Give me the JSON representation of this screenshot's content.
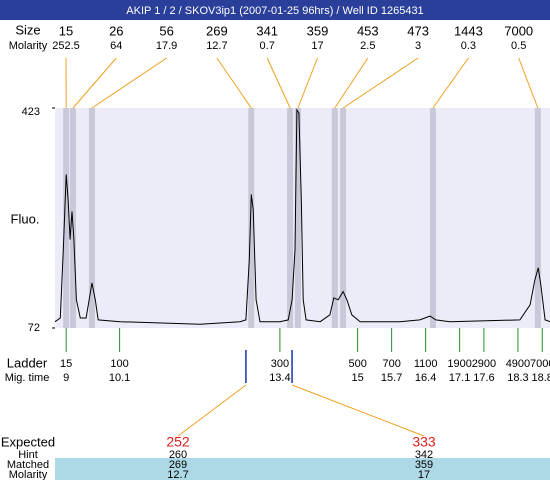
{
  "header": {
    "title": "AKIP 1 / 2 / SKOV3ip1 (2007-01-25 96hrs) / Well ID 1265431"
  },
  "peaks": {
    "size_label": "Size",
    "molarity_label": "Molarity",
    "sizes": [
      15,
      26,
      56,
      269,
      341,
      359,
      453,
      473,
      1443,
      7000
    ],
    "molarity": [
      252.5,
      64,
      17.9,
      12.7,
      0.7,
      17,
      2.5,
      3,
      0.3,
      0.5
    ],
    "times": [
      9.0,
      9.14,
      9.53,
      12.81,
      13.61,
      13.77,
      14.53,
      14.7,
      16.55,
      18.71
    ]
  },
  "chart_data": {
    "type": "line",
    "ylabel": "Fluo.",
    "color": "#000000",
    "x": [
      8.77,
      8.88,
      8.94,
      9.0,
      9.04,
      9.08,
      9.12,
      9.16,
      9.21,
      9.29,
      9.41,
      9.49,
      9.53,
      9.6,
      9.66,
      10.11,
      11.76,
      12.58,
      12.7,
      12.77,
      12.81,
      12.85,
      12.91,
      12.99,
      13.4,
      13.57,
      13.65,
      13.71,
      13.75,
      13.79,
      13.84,
      13.88,
      13.94,
      14.23,
      14.43,
      14.51,
      14.6,
      14.7,
      14.78,
      14.88,
      15.05,
      15.87,
      16.28,
      16.49,
      16.61,
      16.9,
      18.34,
      18.55,
      18.65,
      18.72,
      18.77,
      18.86,
      18.96
    ],
    "values": [
      82,
      88,
      197,
      317,
      277,
      213,
      258,
      213,
      117,
      88,
      88,
      125,
      144,
      117,
      85,
      82,
      78,
      82,
      85,
      181,
      285,
      261,
      117,
      82,
      82,
      85,
      117,
      197,
      420,
      415,
      277,
      117,
      85,
      82,
      93,
      120,
      117,
      130,
      117,
      93,
      82,
      82,
      85,
      91,
      85,
      82,
      85,
      109,
      149,
      168,
      141,
      85,
      82
    ],
    "xlim": [
      8.77,
      18.96
    ],
    "ylim": [
      72,
      423
    ],
    "yticks": [
      72,
      423
    ]
  },
  "ladder": {
    "label": "Ladder",
    "time_label": "Mig. time",
    "sizes": [
      15,
      100,
      300,
      500,
      700,
      1100,
      1900,
      2900,
      4900,
      7000
    ],
    "times": [
      9,
      10.1,
      13.4,
      15,
      15.7,
      16.4,
      17.1,
      17.6,
      18.3,
      18.8
    ]
  },
  "expected": {
    "label": "Expected",
    "values": [
      252,
      333
    ],
    "times": [
      12.7,
      13.65
    ],
    "hint_label": "Hint",
    "hint": [
      260,
      342
    ],
    "matched_label": "Matched",
    "matched": [
      269,
      359
    ],
    "molarity_label": "Molarity",
    "molarity": [
      12.7,
      17
    ]
  }
}
